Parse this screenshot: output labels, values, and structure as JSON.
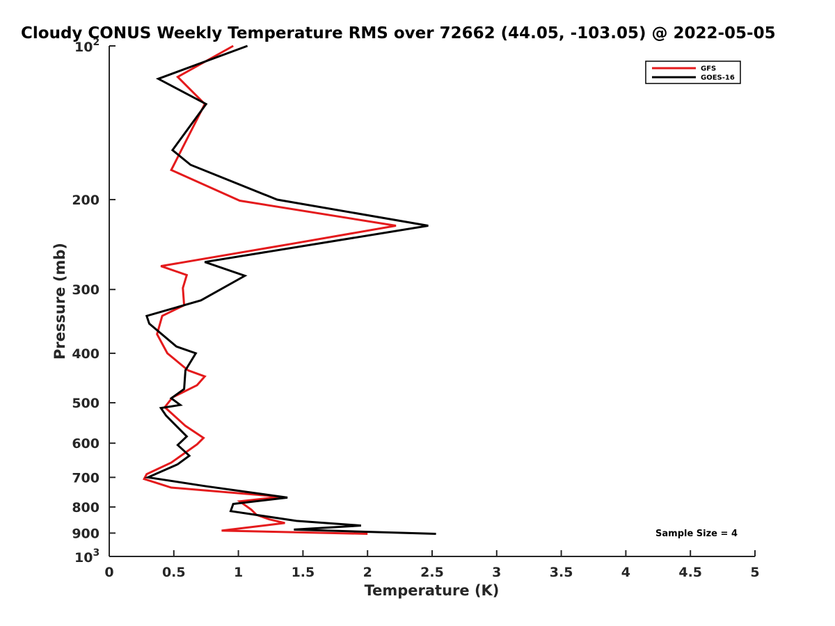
{
  "chart_data": {
    "type": "line",
    "title": "Cloudy CONUS Weekly Temperature RMS over 72662 (44.05, -103.05) @ 2022-05-05",
    "xlabel": "Temperature (K)",
    "ylabel": "Pressure (mb)",
    "xlim": [
      0,
      5
    ],
    "ylim": [
      100,
      1000
    ],
    "yscale": "log",
    "y_reversed": true,
    "xticks": [
      "0",
      "0.5",
      "1",
      "1.5",
      "2",
      "2.5",
      "3",
      "3.5",
      "4",
      "4.5",
      "5"
    ],
    "yticks": [
      {
        "value": 100,
        "base": "10",
        "exp": "2"
      },
      {
        "value": 200,
        "label": "200"
      },
      {
        "value": 300,
        "label": "300"
      },
      {
        "value": 400,
        "label": "400"
      },
      {
        "value": 500,
        "label": "500"
      },
      {
        "value": 600,
        "label": "600"
      },
      {
        "value": 700,
        "label": "700"
      },
      {
        "value": 800,
        "label": "800"
      },
      {
        "value": 900,
        "label": "900"
      },
      {
        "value": 1000,
        "base": "10",
        "exp": "3"
      }
    ],
    "grid": false,
    "legend_position": "top-right",
    "annotation": "Sample Size = 4",
    "series": [
      {
        "name": "GFS",
        "color": "#e41a1c",
        "points": [
          [
            0.96,
            100
          ],
          [
            0.53,
            115
          ],
          [
            0.74,
            130
          ],
          [
            0.48,
            175
          ],
          [
            1.01,
            201
          ],
          [
            2.22,
            225
          ],
          [
            1.42,
            244
          ],
          [
            0.4,
            270
          ],
          [
            0.6,
            281
          ],
          [
            0.57,
            298
          ],
          [
            0.58,
            322
          ],
          [
            0.41,
            338
          ],
          [
            0.37,
            367
          ],
          [
            0.45,
            400
          ],
          [
            0.61,
            432
          ],
          [
            0.74,
            444
          ],
          [
            0.68,
            462
          ],
          [
            0.49,
            488
          ],
          [
            0.43,
            510
          ],
          [
            0.59,
            555
          ],
          [
            0.73,
            586
          ],
          [
            0.68,
            603
          ],
          [
            0.48,
            655
          ],
          [
            0.29,
            690
          ],
          [
            0.27,
            705
          ],
          [
            0.48,
            733
          ],
          [
            1.33,
            764
          ],
          [
            1.01,
            780
          ],
          [
            1.1,
            810
          ],
          [
            1.14,
            829
          ],
          [
            1.24,
            846
          ],
          [
            1.36,
            860
          ],
          [
            0.87,
            890
          ],
          [
            2.0,
            903
          ]
        ]
      },
      {
        "name": "GOES-16",
        "color": "#000000",
        "points": [
          [
            1.07,
            100
          ],
          [
            0.38,
            116
          ],
          [
            0.75,
            130
          ],
          [
            0.49,
            160
          ],
          [
            0.63,
            171
          ],
          [
            1.3,
            200
          ],
          [
            2.47,
            225
          ],
          [
            0.74,
            265
          ],
          [
            1.05,
            282
          ],
          [
            0.71,
            315
          ],
          [
            0.29,
            338
          ],
          [
            0.31,
            350
          ],
          [
            0.52,
            388
          ],
          [
            0.67,
            400
          ],
          [
            0.59,
            432
          ],
          [
            0.58,
            470
          ],
          [
            0.48,
            490
          ],
          [
            0.55,
            505
          ],
          [
            0.4,
            512
          ],
          [
            0.44,
            530
          ],
          [
            0.6,
            582
          ],
          [
            0.53,
            605
          ],
          [
            0.62,
            635
          ],
          [
            0.53,
            660
          ],
          [
            0.3,
            700
          ],
          [
            0.74,
            728
          ],
          [
            1.38,
            767
          ],
          [
            0.96,
            789
          ],
          [
            0.94,
            815
          ],
          [
            1.45,
            852
          ],
          [
            1.95,
            870
          ],
          [
            1.43,
            886
          ],
          [
            2.53,
            903
          ]
        ]
      }
    ]
  }
}
